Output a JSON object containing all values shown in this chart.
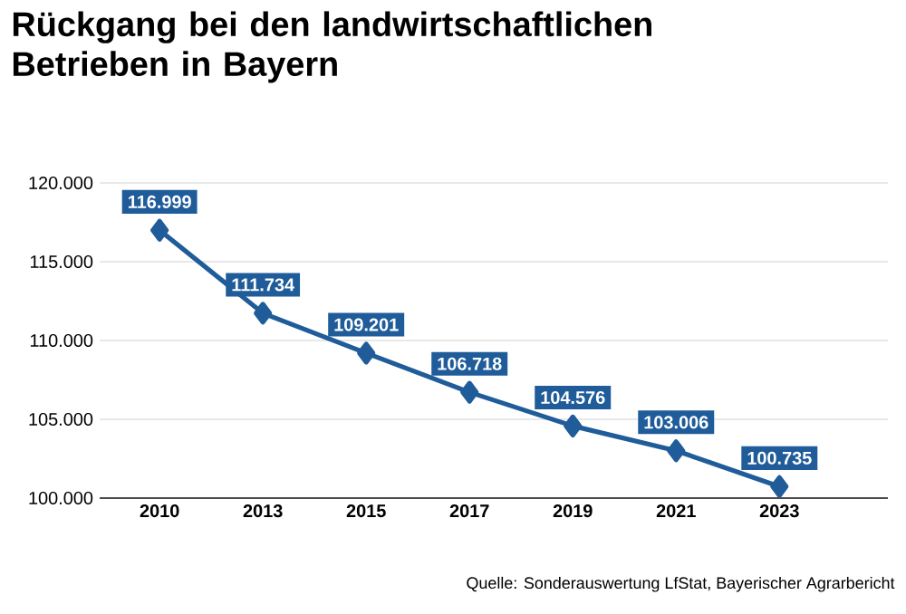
{
  "chart_data": {
    "type": "line",
    "title": "Rückgang bei den landwirtschaftlichen Betrieben in Bayern",
    "categories": [
      "2010",
      "2013",
      "2015",
      "2017",
      "2019",
      "2021",
      "2023"
    ],
    "series": [
      {
        "color": "#1f5c99",
        "values": [
          116999,
          111734,
          109201,
          106718,
          104576,
          103006,
          100735
        ],
        "value_labels": [
          "116.999",
          "111.734",
          "109.201",
          "106.718",
          "104.576",
          "103.006",
          "100.735"
        ]
      }
    ],
    "ylim": [
      100000,
      120000
    ],
    "yticks": [
      {
        "value": 100000,
        "label": "100.000"
      },
      {
        "value": 105000,
        "label": "105.000"
      },
      {
        "value": 110000,
        "label": "110.000"
      },
      {
        "value": 115000,
        "label": "115.000"
      },
      {
        "value": 120000,
        "label": "120.000"
      }
    ],
    "grid": "y",
    "marker": "diamond",
    "line_style": "solid",
    "annotations": [
      "Quelle: Sonderauswertung LfStat, Bayerischer Agrarbericht"
    ]
  }
}
